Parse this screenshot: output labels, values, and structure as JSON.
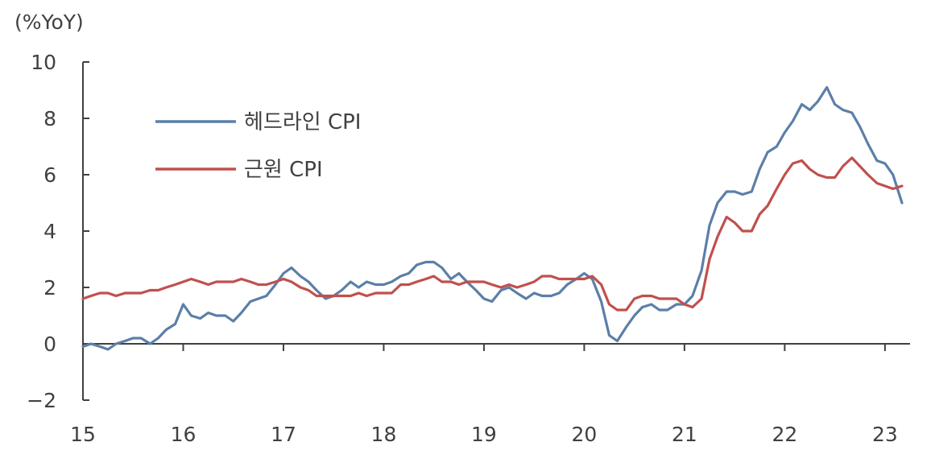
{
  "chart_data": {
    "type": "line",
    "unit_label": "(%YoY)",
    "title": "",
    "xlabel": "",
    "ylabel": "",
    "ylim": [
      -2,
      10
    ],
    "yticks": [
      -2,
      0,
      2,
      4,
      6,
      8,
      10
    ],
    "ytick_labels": [
      "−2",
      "0",
      "2",
      "4",
      "6",
      "8",
      "10"
    ],
    "xlim": [
      2015.0,
      2023.25
    ],
    "xticks": [
      2015,
      2016,
      2017,
      2018,
      2019,
      2020,
      2021,
      2022,
      2023
    ],
    "xtick_labels": [
      "15",
      "16",
      "17",
      "18",
      "19",
      "20",
      "21",
      "22",
      "23"
    ],
    "grid": false,
    "legend_position": "top-left",
    "series": [
      {
        "name": "헤드라인 CPI",
        "color": "#5b7fa8",
        "points": [
          [
            2015.0,
            -0.1
          ],
          [
            2015.08,
            0.0
          ],
          [
            2015.17,
            -0.1
          ],
          [
            2015.25,
            -0.2
          ],
          [
            2015.33,
            0.0
          ],
          [
            2015.42,
            0.1
          ],
          [
            2015.5,
            0.2
          ],
          [
            2015.58,
            0.2
          ],
          [
            2015.67,
            0.0
          ],
          [
            2015.75,
            0.2
          ],
          [
            2015.83,
            0.5
          ],
          [
            2015.92,
            0.7
          ],
          [
            2016.0,
            1.4
          ],
          [
            2016.08,
            1.0
          ],
          [
            2016.17,
            0.9
          ],
          [
            2016.25,
            1.1
          ],
          [
            2016.33,
            1.0
          ],
          [
            2016.42,
            1.0
          ],
          [
            2016.5,
            0.8
          ],
          [
            2016.58,
            1.1
          ],
          [
            2016.67,
            1.5
          ],
          [
            2016.75,
            1.6
          ],
          [
            2016.83,
            1.7
          ],
          [
            2016.92,
            2.1
          ],
          [
            2017.0,
            2.5
          ],
          [
            2017.08,
            2.7
          ],
          [
            2017.17,
            2.4
          ],
          [
            2017.25,
            2.2
          ],
          [
            2017.33,
            1.9
          ],
          [
            2017.42,
            1.6
          ],
          [
            2017.5,
            1.7
          ],
          [
            2017.58,
            1.9
          ],
          [
            2017.67,
            2.2
          ],
          [
            2017.75,
            2.0
          ],
          [
            2017.83,
            2.2
          ],
          [
            2017.92,
            2.1
          ],
          [
            2018.0,
            2.1
          ],
          [
            2018.08,
            2.2
          ],
          [
            2018.17,
            2.4
          ],
          [
            2018.25,
            2.5
          ],
          [
            2018.33,
            2.8
          ],
          [
            2018.42,
            2.9
          ],
          [
            2018.5,
            2.9
          ],
          [
            2018.58,
            2.7
          ],
          [
            2018.67,
            2.3
          ],
          [
            2018.75,
            2.5
          ],
          [
            2018.83,
            2.2
          ],
          [
            2018.92,
            1.9
          ],
          [
            2019.0,
            1.6
          ],
          [
            2019.08,
            1.5
          ],
          [
            2019.17,
            1.9
          ],
          [
            2019.25,
            2.0
          ],
          [
            2019.33,
            1.8
          ],
          [
            2019.42,
            1.6
          ],
          [
            2019.5,
            1.8
          ],
          [
            2019.58,
            1.7
          ],
          [
            2019.67,
            1.7
          ],
          [
            2019.75,
            1.8
          ],
          [
            2019.83,
            2.1
          ],
          [
            2019.92,
            2.3
          ],
          [
            2020.0,
            2.5
          ],
          [
            2020.08,
            2.3
          ],
          [
            2020.17,
            1.5
          ],
          [
            2020.25,
            0.3
          ],
          [
            2020.33,
            0.1
          ],
          [
            2020.42,
            0.6
          ],
          [
            2020.5,
            1.0
          ],
          [
            2020.58,
            1.3
          ],
          [
            2020.67,
            1.4
          ],
          [
            2020.75,
            1.2
          ],
          [
            2020.83,
            1.2
          ],
          [
            2020.92,
            1.4
          ],
          [
            2021.0,
            1.4
          ],
          [
            2021.08,
            1.7
          ],
          [
            2021.17,
            2.6
          ],
          [
            2021.25,
            4.2
          ],
          [
            2021.33,
            5.0
          ],
          [
            2021.42,
            5.4
          ],
          [
            2021.5,
            5.4
          ],
          [
            2021.58,
            5.3
          ],
          [
            2021.67,
            5.4
          ],
          [
            2021.75,
            6.2
          ],
          [
            2021.83,
            6.8
          ],
          [
            2021.92,
            7.0
          ],
          [
            2022.0,
            7.5
          ],
          [
            2022.08,
            7.9
          ],
          [
            2022.17,
            8.5
          ],
          [
            2022.25,
            8.3
          ],
          [
            2022.33,
            8.6
          ],
          [
            2022.42,
            9.1
          ],
          [
            2022.5,
            8.5
          ],
          [
            2022.58,
            8.3
          ],
          [
            2022.67,
            8.2
          ],
          [
            2022.75,
            7.7
          ],
          [
            2022.83,
            7.1
          ],
          [
            2022.92,
            6.5
          ],
          [
            2023.0,
            6.4
          ],
          [
            2023.08,
            6.0
          ],
          [
            2023.17,
            5.0
          ]
        ]
      },
      {
        "name": "근원 CPI",
        "color": "#c0504d",
        "points": [
          [
            2015.0,
            1.6
          ],
          [
            2015.08,
            1.7
          ],
          [
            2015.17,
            1.8
          ],
          [
            2015.25,
            1.8
          ],
          [
            2015.33,
            1.7
          ],
          [
            2015.42,
            1.8
          ],
          [
            2015.5,
            1.8
          ],
          [
            2015.58,
            1.8
          ],
          [
            2015.67,
            1.9
          ],
          [
            2015.75,
            1.9
          ],
          [
            2015.83,
            2.0
          ],
          [
            2015.92,
            2.1
          ],
          [
            2016.0,
            2.2
          ],
          [
            2016.08,
            2.3
          ],
          [
            2016.17,
            2.2
          ],
          [
            2016.25,
            2.1
          ],
          [
            2016.33,
            2.2
          ],
          [
            2016.42,
            2.2
          ],
          [
            2016.5,
            2.2
          ],
          [
            2016.58,
            2.3
          ],
          [
            2016.67,
            2.2
          ],
          [
            2016.75,
            2.1
          ],
          [
            2016.83,
            2.1
          ],
          [
            2016.92,
            2.2
          ],
          [
            2017.0,
            2.3
          ],
          [
            2017.08,
            2.2
          ],
          [
            2017.17,
            2.0
          ],
          [
            2017.25,
            1.9
          ],
          [
            2017.33,
            1.7
          ],
          [
            2017.42,
            1.7
          ],
          [
            2017.5,
            1.7
          ],
          [
            2017.58,
            1.7
          ],
          [
            2017.67,
            1.7
          ],
          [
            2017.75,
            1.8
          ],
          [
            2017.83,
            1.7
          ],
          [
            2017.92,
            1.8
          ],
          [
            2018.0,
            1.8
          ],
          [
            2018.08,
            1.8
          ],
          [
            2018.17,
            2.1
          ],
          [
            2018.25,
            2.1
          ],
          [
            2018.33,
            2.2
          ],
          [
            2018.42,
            2.3
          ],
          [
            2018.5,
            2.4
          ],
          [
            2018.58,
            2.2
          ],
          [
            2018.67,
            2.2
          ],
          [
            2018.75,
            2.1
          ],
          [
            2018.83,
            2.2
          ],
          [
            2018.92,
            2.2
          ],
          [
            2019.0,
            2.2
          ],
          [
            2019.08,
            2.1
          ],
          [
            2019.17,
            2.0
          ],
          [
            2019.25,
            2.1
          ],
          [
            2019.33,
            2.0
          ],
          [
            2019.42,
            2.1
          ],
          [
            2019.5,
            2.2
          ],
          [
            2019.58,
            2.4
          ],
          [
            2019.67,
            2.4
          ],
          [
            2019.75,
            2.3
          ],
          [
            2019.83,
            2.3
          ],
          [
            2019.92,
            2.3
          ],
          [
            2020.0,
            2.3
          ],
          [
            2020.08,
            2.4
          ],
          [
            2020.17,
            2.1
          ],
          [
            2020.25,
            1.4
          ],
          [
            2020.33,
            1.2
          ],
          [
            2020.42,
            1.2
          ],
          [
            2020.5,
            1.6
          ],
          [
            2020.58,
            1.7
          ],
          [
            2020.67,
            1.7
          ],
          [
            2020.75,
            1.6
          ],
          [
            2020.83,
            1.6
          ],
          [
            2020.92,
            1.6
          ],
          [
            2021.0,
            1.4
          ],
          [
            2021.08,
            1.3
          ],
          [
            2021.17,
            1.6
          ],
          [
            2021.25,
            3.0
          ],
          [
            2021.33,
            3.8
          ],
          [
            2021.42,
            4.5
          ],
          [
            2021.5,
            4.3
          ],
          [
            2021.58,
            4.0
          ],
          [
            2021.67,
            4.0
          ],
          [
            2021.75,
            4.6
          ],
          [
            2021.83,
            4.9
          ],
          [
            2021.92,
            5.5
          ],
          [
            2022.0,
            6.0
          ],
          [
            2022.08,
            6.4
          ],
          [
            2022.17,
            6.5
          ],
          [
            2022.25,
            6.2
          ],
          [
            2022.33,
            6.0
          ],
          [
            2022.42,
            5.9
          ],
          [
            2022.5,
            5.9
          ],
          [
            2022.58,
            6.3
          ],
          [
            2022.67,
            6.6
          ],
          [
            2022.75,
            6.3
          ],
          [
            2022.83,
            6.0
          ],
          [
            2022.92,
            5.7
          ],
          [
            2023.0,
            5.6
          ],
          [
            2023.08,
            5.5
          ],
          [
            2023.17,
            5.6
          ]
        ]
      }
    ]
  }
}
